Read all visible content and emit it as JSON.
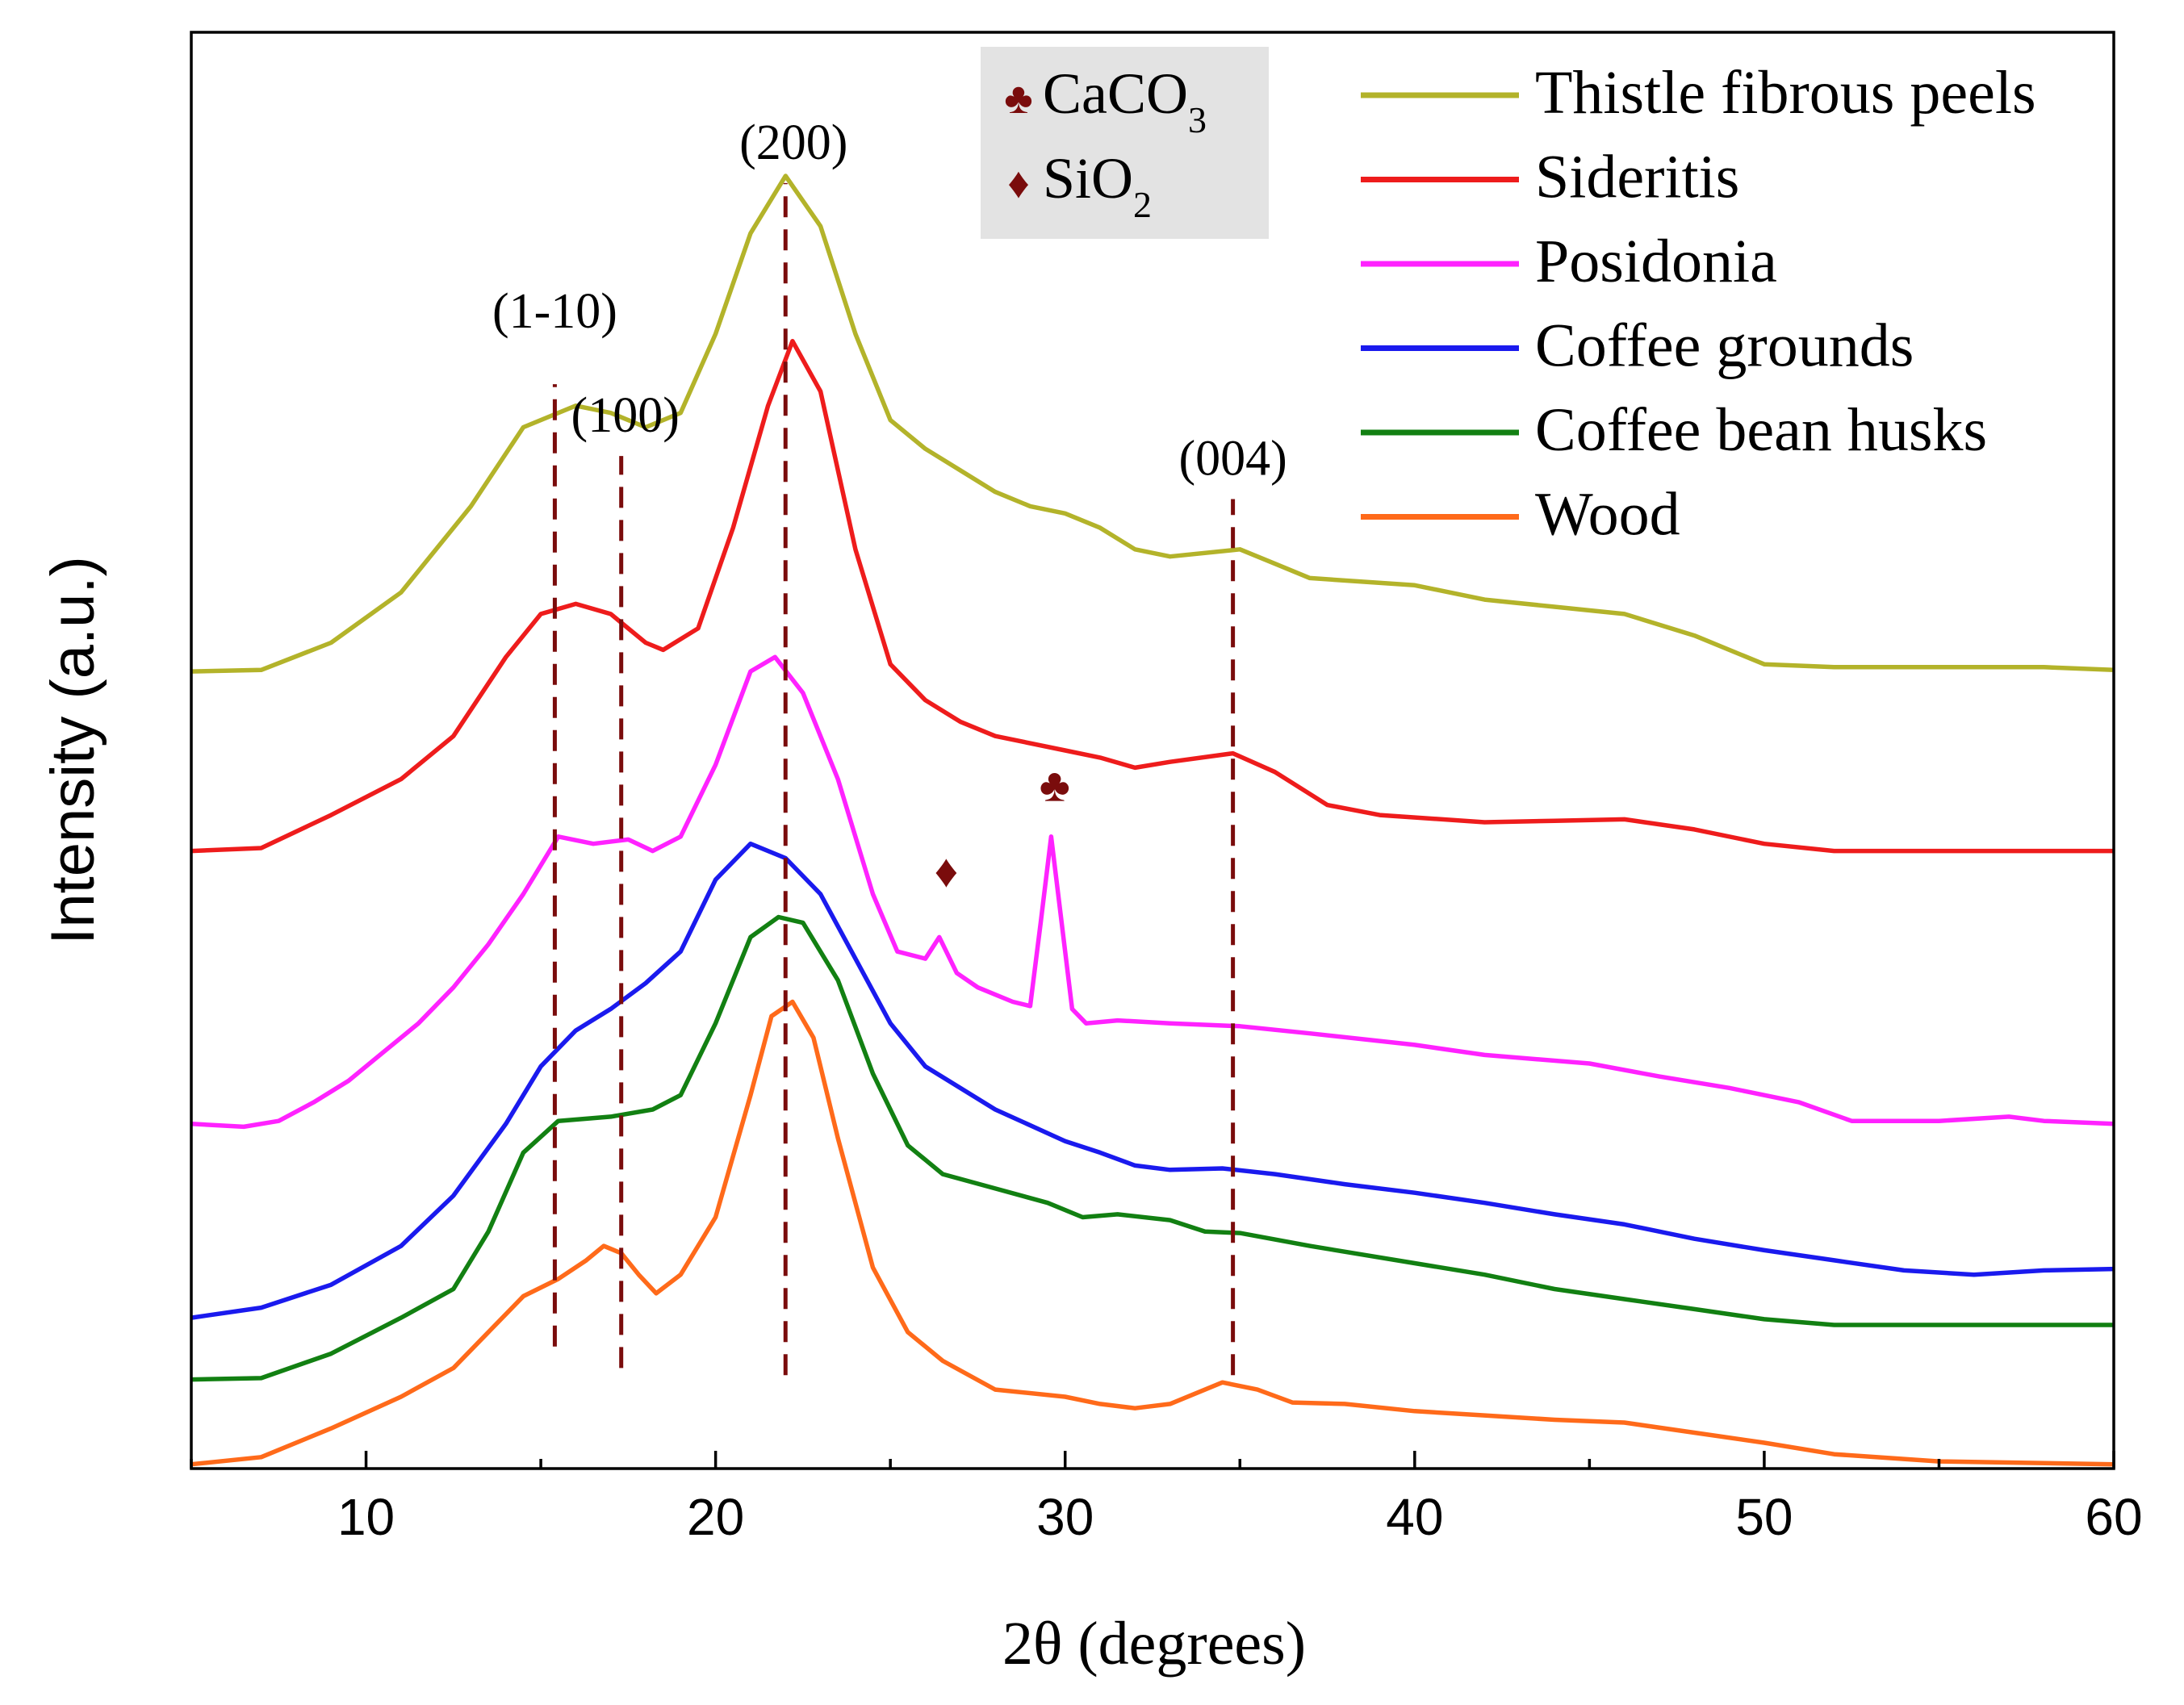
{
  "chart_data": {
    "type": "line",
    "xlabel": "2θ (degrees)",
    "ylabel": "Intensity (a.u.)",
    "xlim": [
      5,
      60
    ],
    "ylim": [
      0,
      100
    ],
    "xticks": [
      10,
      20,
      30,
      40,
      50,
      60
    ],
    "grid": false,
    "legend_position": "top-right",
    "series": [
      {
        "name": "Thistle fibrous peels",
        "color": "#b3b32a",
        "points": [
          [
            5,
            55.5
          ],
          [
            7,
            55.6
          ],
          [
            9,
            57.5
          ],
          [
            11,
            61
          ],
          [
            13,
            67
          ],
          [
            14.5,
            72.5
          ],
          [
            16,
            74
          ],
          [
            17,
            73.5
          ],
          [
            18,
            72.5
          ],
          [
            19,
            73.5
          ],
          [
            20,
            79
          ],
          [
            21,
            86
          ],
          [
            22,
            90
          ],
          [
            23,
            86.5
          ],
          [
            24,
            79
          ],
          [
            25,
            73
          ],
          [
            26,
            71
          ],
          [
            27,
            69.5
          ],
          [
            28,
            68
          ],
          [
            29,
            67
          ],
          [
            30,
            66.5
          ],
          [
            31,
            65.5
          ],
          [
            32,
            64
          ],
          [
            33,
            63.5
          ],
          [
            35,
            64
          ],
          [
            36,
            63
          ],
          [
            37,
            62
          ],
          [
            40,
            61.5
          ],
          [
            42,
            60.5
          ],
          [
            44,
            60
          ],
          [
            46,
            59.5
          ],
          [
            48,
            58
          ],
          [
            50,
            56
          ],
          [
            52,
            55.8
          ],
          [
            55,
            55.8
          ],
          [
            58,
            55.8
          ],
          [
            60,
            55.6
          ]
        ]
      },
      {
        "name": "Sideritis",
        "color": "#ee1c1c",
        "points": [
          [
            5,
            43
          ],
          [
            7,
            43.2
          ],
          [
            9,
            45.5
          ],
          [
            11,
            48
          ],
          [
            12.5,
            51
          ],
          [
            14,
            56.5
          ],
          [
            15,
            59.5
          ],
          [
            16,
            60.2
          ],
          [
            17,
            59.5
          ],
          [
            18,
            57.5
          ],
          [
            18.5,
            57
          ],
          [
            19.5,
            58.5
          ],
          [
            20.5,
            65.5
          ],
          [
            21.5,
            74
          ],
          [
            22.2,
            78.5
          ],
          [
            23,
            75
          ],
          [
            24,
            64
          ],
          [
            25,
            56
          ],
          [
            26,
            53.5
          ],
          [
            27,
            52
          ],
          [
            28,
            51
          ],
          [
            30,
            50
          ],
          [
            31,
            49.5
          ],
          [
            32,
            48.8
          ],
          [
            33,
            49.2
          ],
          [
            34.8,
            49.8
          ],
          [
            36,
            48.5
          ],
          [
            37.5,
            46.2
          ],
          [
            39,
            45.5
          ],
          [
            42,
            45
          ],
          [
            44,
            45.1
          ],
          [
            46,
            45.2
          ],
          [
            48,
            44.5
          ],
          [
            50,
            43.5
          ],
          [
            52,
            43
          ],
          [
            55,
            43
          ],
          [
            58,
            43
          ],
          [
            60,
            43
          ]
        ]
      },
      {
        "name": "Posidonia",
        "color": "#ff22ff",
        "points": [
          [
            5,
            24
          ],
          [
            6.5,
            23.8
          ],
          [
            7.5,
            24.2
          ],
          [
            8.5,
            25.5
          ],
          [
            9.5,
            27
          ],
          [
            10.5,
            29
          ],
          [
            11.5,
            31
          ],
          [
            12.5,
            33.5
          ],
          [
            13.5,
            36.5
          ],
          [
            14.5,
            40
          ],
          [
            15.5,
            44
          ],
          [
            16.5,
            43.5
          ],
          [
            17.5,
            43.8
          ],
          [
            18.2,
            43
          ],
          [
            19,
            44
          ],
          [
            20,
            49
          ],
          [
            21,
            55.5
          ],
          [
            21.7,
            56.5
          ],
          [
            22.5,
            54
          ],
          [
            23.5,
            48
          ],
          [
            24.5,
            40
          ],
          [
            25.2,
            36
          ],
          [
            26,
            35.5
          ],
          [
            26.4,
            37
          ],
          [
            26.9,
            34.5
          ],
          [
            27.5,
            33.5
          ],
          [
            28.5,
            32.5
          ],
          [
            29,
            32.2
          ],
          [
            29.3,
            38
          ],
          [
            29.6,
            44
          ],
          [
            29.9,
            38
          ],
          [
            30.2,
            32
          ],
          [
            30.6,
            31
          ],
          [
            31.5,
            31.2
          ],
          [
            33,
            31
          ],
          [
            35,
            30.8
          ],
          [
            37,
            30.3
          ],
          [
            40,
            29.5
          ],
          [
            42,
            28.8
          ],
          [
            45,
            28.2
          ],
          [
            47,
            27.3
          ],
          [
            49,
            26.5
          ],
          [
            51,
            25.5
          ],
          [
            52.5,
            24.2
          ],
          [
            55,
            24.2
          ],
          [
            57,
            24.5
          ],
          [
            58,
            24.2
          ],
          [
            60,
            24
          ]
        ]
      },
      {
        "name": "Coffee grounds",
        "color": "#1a1aee",
        "points": [
          [
            5,
            10.5
          ],
          [
            7,
            11.2
          ],
          [
            9,
            12.8
          ],
          [
            11,
            15.5
          ],
          [
            12.5,
            19
          ],
          [
            14,
            24
          ],
          [
            15,
            28
          ],
          [
            16,
            30.5
          ],
          [
            17,
            32
          ],
          [
            18,
            33.8
          ],
          [
            19,
            36
          ],
          [
            20,
            41
          ],
          [
            21,
            43.5
          ],
          [
            22,
            42.5
          ],
          [
            23,
            40
          ],
          [
            24,
            35.5
          ],
          [
            25,
            31
          ],
          [
            26,
            28
          ],
          [
            28,
            25
          ],
          [
            30,
            22.8
          ],
          [
            31,
            22
          ],
          [
            32,
            21.1
          ],
          [
            33,
            20.8
          ],
          [
            34.5,
            20.9
          ],
          [
            36,
            20.5
          ],
          [
            38,
            19.8
          ],
          [
            40,
            19.2
          ],
          [
            42,
            18.5
          ],
          [
            44,
            17.7
          ],
          [
            46,
            17
          ],
          [
            48,
            16
          ],
          [
            50,
            15.2
          ],
          [
            52,
            14.5
          ],
          [
            54,
            13.8
          ],
          [
            56,
            13.5
          ],
          [
            58,
            13.8
          ],
          [
            60,
            13.9
          ]
        ]
      },
      {
        "name": "Coffee bean husks",
        "color": "#128012",
        "points": [
          [
            5,
            6.2
          ],
          [
            7,
            6.3
          ],
          [
            9,
            8
          ],
          [
            11,
            10.5
          ],
          [
            12.5,
            12.5
          ],
          [
            13.5,
            16.5
          ],
          [
            14.5,
            22
          ],
          [
            15.5,
            24.2
          ],
          [
            17,
            24.5
          ],
          [
            18.2,
            25
          ],
          [
            19,
            26
          ],
          [
            20,
            31
          ],
          [
            21,
            37
          ],
          [
            21.8,
            38.4
          ],
          [
            22.5,
            38
          ],
          [
            23.5,
            34
          ],
          [
            24.5,
            27.5
          ],
          [
            25.5,
            22.5
          ],
          [
            26.5,
            20.5
          ],
          [
            28,
            19.5
          ],
          [
            29.5,
            18.5
          ],
          [
            30.5,
            17.5
          ],
          [
            31.5,
            17.7
          ],
          [
            33,
            17.3
          ],
          [
            34,
            16.5
          ],
          [
            35,
            16.4
          ],
          [
            37,
            15.5
          ],
          [
            40,
            14.3
          ],
          [
            42,
            13.5
          ],
          [
            44,
            12.5
          ],
          [
            46,
            11.8
          ],
          [
            48,
            11.1
          ],
          [
            50,
            10.4
          ],
          [
            52,
            10
          ],
          [
            55,
            10
          ],
          [
            60,
            10
          ]
        ]
      },
      {
        "name": "Wood",
        "color": "#ff6a1a",
        "points": [
          [
            5,
            0.3
          ],
          [
            7,
            0.8
          ],
          [
            9,
            2.8
          ],
          [
            11,
            5
          ],
          [
            12.5,
            7
          ],
          [
            13.5,
            9.5
          ],
          [
            14.5,
            12
          ],
          [
            15.5,
            13.2
          ],
          [
            16.3,
            14.5
          ],
          [
            16.8,
            15.5
          ],
          [
            17.3,
            15
          ],
          [
            17.8,
            13.5
          ],
          [
            18.3,
            12.2
          ],
          [
            19,
            13.5
          ],
          [
            20,
            17.5
          ],
          [
            21,
            26
          ],
          [
            21.6,
            31.5
          ],
          [
            22.2,
            32.5
          ],
          [
            22.8,
            30
          ],
          [
            23.5,
            23
          ],
          [
            24.5,
            14
          ],
          [
            25.5,
            9.5
          ],
          [
            26.5,
            7.5
          ],
          [
            28,
            5.5
          ],
          [
            30,
            5
          ],
          [
            31,
            4.5
          ],
          [
            32,
            4.2
          ],
          [
            33,
            4.5
          ],
          [
            34.5,
            6
          ],
          [
            35.5,
            5.5
          ],
          [
            36.5,
            4.6
          ],
          [
            38,
            4.5
          ],
          [
            40,
            4
          ],
          [
            42,
            3.7
          ],
          [
            44,
            3.4
          ],
          [
            46,
            3.2
          ],
          [
            48,
            2.5
          ],
          [
            50,
            1.8
          ],
          [
            52,
            1
          ],
          [
            55,
            0.5
          ],
          [
            60,
            0.3
          ]
        ]
      }
    ],
    "reference_lines": [
      {
        "label": "(1-10)",
        "x": 15.4,
        "y_range": [
          8.5,
          75.5
        ]
      },
      {
        "label": "(100)",
        "x": 17.3,
        "y_range": [
          7,
          70.5
        ]
      },
      {
        "label": "(200)",
        "x": 22.0,
        "y_range": [
          6.5,
          89.5
        ]
      },
      {
        "label": "(004)",
        "x": 34.8,
        "y_range": [
          6.5,
          67.5
        ]
      }
    ],
    "phase_markers": [
      {
        "symbol": "♣",
        "phase": "CaCO",
        "sub": "3",
        "x": 29.7,
        "y": 46.5
      },
      {
        "symbol": "♦",
        "phase": "SiO",
        "sub": "2",
        "x": 26.6,
        "y": 40.5
      }
    ]
  }
}
